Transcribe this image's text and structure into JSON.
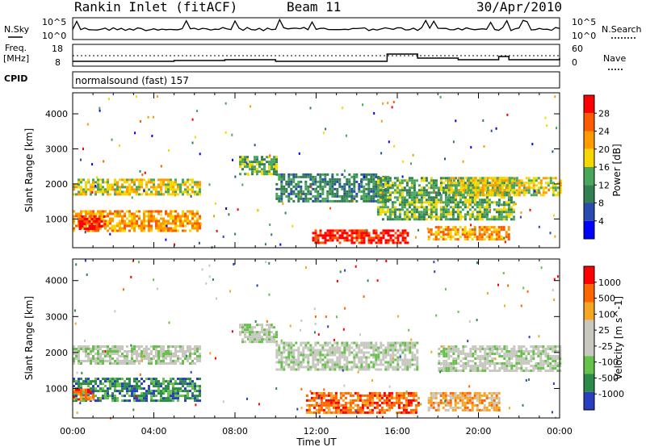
{
  "header": {
    "station": "Rankin Inlet (fitACF)",
    "beam": "Beam 11",
    "date": "30/Apr/2010"
  },
  "noise_panel": {
    "left_label": "N.Sky",
    "right_label": "N.Search",
    "left_ticks": [
      "10^5",
      "10^0"
    ],
    "right_ticks": [
      "10^5",
      "10^0"
    ]
  },
  "freq_panel": {
    "left_label_1": "Freq.",
    "left_label_2": "[MHz]",
    "left_ticks": [
      "18",
      "8"
    ],
    "right_label": "Nave",
    "right_ticks": [
      "60",
      "0"
    ]
  },
  "cpid": {
    "label": "CPID",
    "value": "normalsound (fast) 157"
  },
  "colors": {
    "power": [
      "#0000ff",
      "#2a4bb0",
      "#337f52",
      "#4aa65a",
      "#f6d800",
      "#ff9a00",
      "#ff5a00",
      "#ff0000"
    ],
    "velocity": [
      "#2a3fbf",
      "#2b8a4a",
      "#66c24a",
      "#c8c8c0",
      "#c8c8c0",
      "#f5a623",
      "#ff6600",
      "#ff0000"
    ]
  },
  "chart_data": [
    {
      "type": "heatmap",
      "name": "power",
      "xlabel": "",
      "ylabel": "Slant Range [km]",
      "x_ticks": [
        "00:00",
        "04:00",
        "08:00",
        "12:00",
        "16:00",
        "20:00",
        "00:00"
      ],
      "y_ticks": [
        1000,
        2000,
        3000,
        4000
      ],
      "ylim": [
        180,
        4600
      ],
      "colorbar_label": "Power [dB]",
      "colorbar_ticks": [
        "28",
        "24",
        "20",
        "16",
        "12",
        "8",
        "4"
      ],
      "bands": [
        {
          "t0": 0.0,
          "t1": 6.3,
          "r0": 1700,
          "r1": 2150,
          "level": 4
        },
        {
          "t0": 0.0,
          "t1": 6.3,
          "r0": 650,
          "r1": 1250,
          "level": 5
        },
        {
          "t0": 0.3,
          "t1": 1.5,
          "r0": 750,
          "r1": 1100,
          "level": 7
        },
        {
          "t0": 8.2,
          "t1": 10.0,
          "r0": 2300,
          "r1": 2800,
          "level": 3
        },
        {
          "t0": 10.0,
          "t1": 15.5,
          "r0": 1500,
          "r1": 2300,
          "level": 2
        },
        {
          "t0": 11.8,
          "t1": 16.5,
          "r0": 300,
          "r1": 700,
          "level": 7
        },
        {
          "t0": 15.0,
          "t1": 21.8,
          "r0": 1000,
          "r1": 2200,
          "level": 3
        },
        {
          "t0": 18.5,
          "t1": 24.0,
          "r0": 1700,
          "r1": 2200,
          "level": 4
        },
        {
          "t0": 17.5,
          "t1": 21.5,
          "r0": 400,
          "r1": 800,
          "level": 5
        }
      ]
    },
    {
      "type": "heatmap",
      "name": "velocity",
      "xlabel": "Time UT",
      "ylabel": "Slant Range [km]",
      "x_ticks": [
        "00:00",
        "04:00",
        "08:00",
        "12:00",
        "16:00",
        "20:00",
        "00:00"
      ],
      "y_ticks": [
        1000,
        2000,
        3000,
        4000
      ],
      "ylim": [
        180,
        4600
      ],
      "colorbar_label": "Velocity [m s^-1]",
      "colorbar_ticks": [
        "1000",
        "500",
        "100",
        "25",
        "-25",
        "-100",
        "-500",
        "-1000"
      ],
      "bands": [
        {
          "t0": 0.0,
          "t1": 6.3,
          "r0": 1700,
          "r1": 2200,
          "level": 3
        },
        {
          "t0": 0.0,
          "t1": 6.3,
          "r0": 650,
          "r1": 1300,
          "level": 1
        },
        {
          "t0": 0.0,
          "t1": 1.0,
          "r0": 700,
          "r1": 1000,
          "level": 6
        },
        {
          "t0": 8.2,
          "t1": 10.0,
          "r0": 2300,
          "r1": 2800,
          "level": 3
        },
        {
          "t0": 10.0,
          "t1": 17.0,
          "r0": 1500,
          "r1": 2300,
          "level": 3
        },
        {
          "t0": 11.5,
          "t1": 17.0,
          "r0": 300,
          "r1": 900,
          "level": 6
        },
        {
          "t0": 18.0,
          "t1": 24.0,
          "r0": 1500,
          "r1": 2200,
          "level": 3
        },
        {
          "t0": 17.5,
          "t1": 21.0,
          "r0": 400,
          "r1": 900,
          "level": 5
        }
      ]
    }
  ]
}
